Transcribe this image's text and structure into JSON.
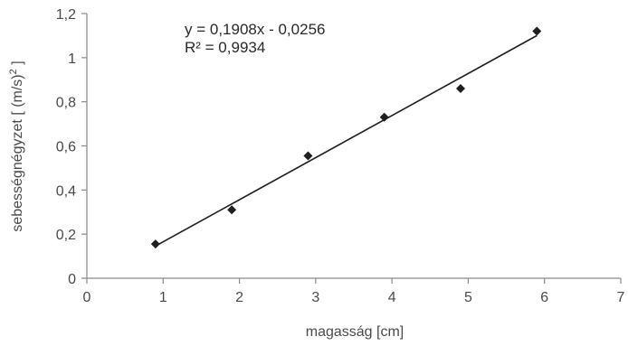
{
  "chart_data": {
    "type": "scatter",
    "xlabel": "magasság [cm]",
    "ylabel": "sebességnégyzet [ (m/s)",
    "ylabel_sup": "2",
    "ylabel_end": " ]",
    "xlim": [
      0,
      7
    ],
    "ylim": [
      0,
      1.2
    ],
    "x_ticks": [
      "0",
      "1",
      "2",
      "3",
      "4",
      "5",
      "6",
      "7"
    ],
    "y_ticks": [
      "0",
      "0,2",
      "0,4",
      "0,6",
      "0,8",
      "1",
      "1,2"
    ],
    "grid": false,
    "marker": "diamond",
    "points": [
      {
        "x": 0.9,
        "y": 0.155
      },
      {
        "x": 1.9,
        "y": 0.31
      },
      {
        "x": 2.9,
        "y": 0.555
      },
      {
        "x": 3.9,
        "y": 0.73
      },
      {
        "x": 4.9,
        "y": 0.86
      },
      {
        "x": 5.9,
        "y": 1.12
      }
    ],
    "trendline": {
      "type": "linear",
      "slope": 0.1908,
      "intercept": -0.0256,
      "x_range": [
        0.9,
        5.9
      ],
      "equation": "y = 0,1908x - 0,0256",
      "r_squared": "R² = 0,9934"
    },
    "colors": {
      "marker": "#1f1f1f",
      "line": "#1f1f1f",
      "axis": "#8a8a8a",
      "text": "#4a4a4a"
    }
  }
}
